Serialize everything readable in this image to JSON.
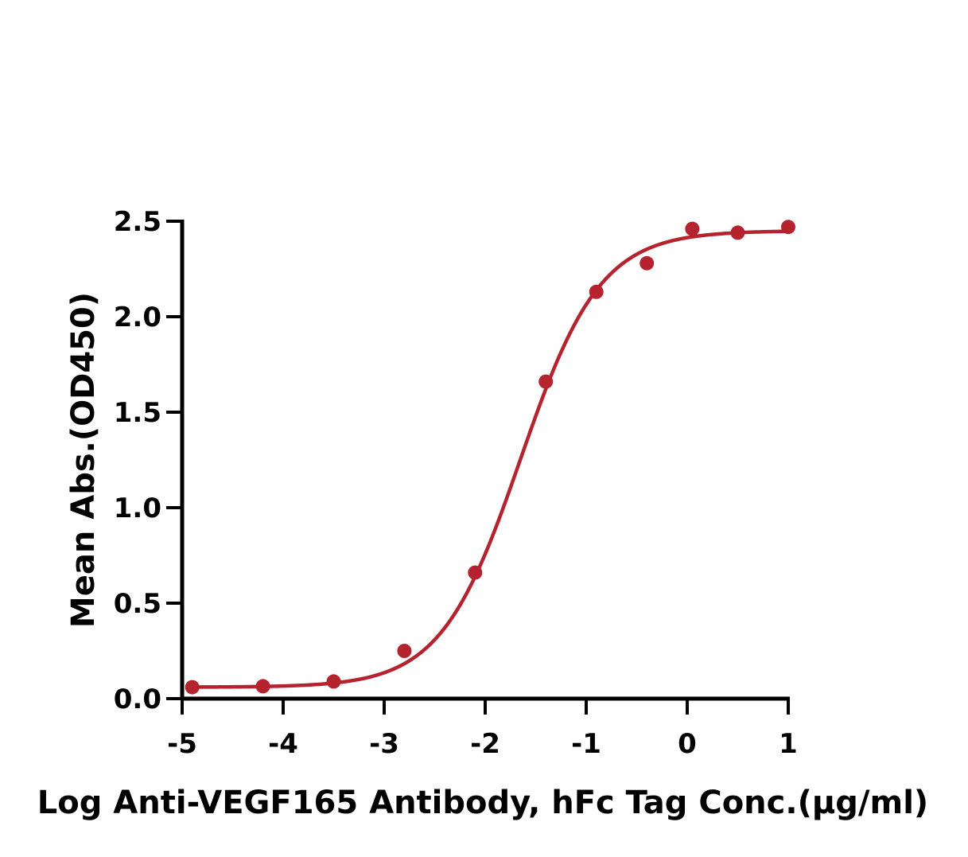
{
  "chart_data": {
    "type": "scatter",
    "title": "",
    "xlabel": "Log Anti-VEGF165 Antibody, hFc Tag Conc.(μg/ml)",
    "ylabel": "Mean Abs.(OD450)",
    "xlim": [
      -5,
      1
    ],
    "ylim": [
      0,
      2.5
    ],
    "x_ticks": [
      -5,
      -4,
      -3,
      -2,
      -1,
      0,
      1
    ],
    "x_tick_labels": [
      "-5",
      "-4",
      "-3",
      "-2",
      "-1",
      "0",
      "1"
    ],
    "y_ticks": [
      0,
      0.5,
      1,
      1.5,
      2,
      2.5
    ],
    "y_tick_labels": [
      "0.0",
      "0.5",
      "1.0",
      "1.5",
      "2.0",
      "2.5"
    ],
    "grid": false,
    "series": [
      {
        "x": [
          -4.9,
          -4.2,
          -3.5,
          -2.8,
          -2.1,
          -1.4,
          -0.9,
          -0.4,
          0.05,
          0.5,
          1.0
        ],
        "y": [
          0.06,
          0.065,
          0.09,
          0.25,
          0.66,
          1.66,
          2.13,
          2.28,
          2.46,
          2.44,
          2.47
        ],
        "color": "#b5232f",
        "marker": "circle"
      }
    ],
    "fit_curve": {
      "model": "4PL",
      "bottom": 0.06,
      "top": 2.45,
      "logEC50": -1.65,
      "hill_slope": 1.1,
      "color": "#b5232f"
    },
    "legend": "none"
  }
}
